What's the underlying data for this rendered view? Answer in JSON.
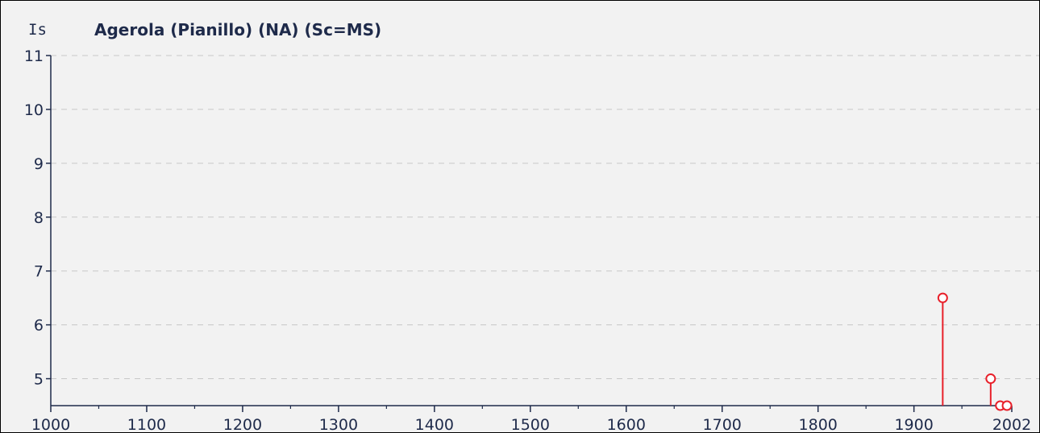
{
  "chart_data": {
    "type": "scatter",
    "style": "stem",
    "title": "Agerola (Pianillo) (NA) (Sc=MS)",
    "ylabel": "Is",
    "xlabel": "",
    "xlim": [
      1000,
      2002
    ],
    "ylim": [
      4.5,
      11
    ],
    "x_ticks": [
      1000,
      1100,
      1200,
      1300,
      1400,
      1500,
      1600,
      1700,
      1800,
      1900,
      2002
    ],
    "y_ticks": [
      5,
      6,
      7,
      8,
      9,
      10,
      11
    ],
    "grid": "horizontal dashed",
    "baseline": 4.5,
    "points": [
      {
        "x": 1930,
        "y": 6.5
      },
      {
        "x": 1980,
        "y": 5
      },
      {
        "x": 1990,
        "y": 4.5
      },
      {
        "x": 1997,
        "y": 4.5
      }
    ],
    "colors": {
      "background": "#f2f2f2",
      "axis": "#1e2a4a",
      "grid": "#c8c8c8",
      "marker": "#e8202a"
    }
  }
}
